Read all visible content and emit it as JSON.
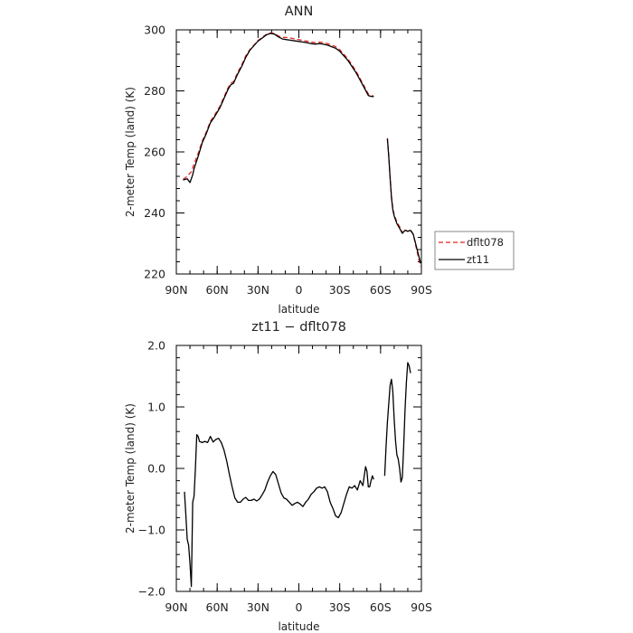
{
  "chart_data": [
    {
      "type": "line",
      "title": "ANN",
      "xlabel": "latitude",
      "ylabel": "2-meter Temp (land) (K)",
      "xlim": [
        90,
        -90
      ],
      "ylim": [
        220,
        300
      ],
      "x_tick_labels": [
        "90N",
        "60N",
        "30N",
        "0",
        "30S",
        "60S",
        "90S"
      ],
      "x_tick_values": [
        90,
        60,
        30,
        0,
        -30,
        -60,
        -90
      ],
      "y_ticks": [
        220,
        240,
        260,
        280,
        300
      ],
      "y_tick_labels": [
        "220",
        "240",
        "260",
        "280",
        "300"
      ],
      "grid": false,
      "legend_position": "right",
      "series": [
        {
          "name": "dflt078",
          "color": "#e0231e",
          "dash": "dashed",
          "segments": [
            [
              [
                85,
                251.0
              ],
              [
                82,
                252.0
              ],
              [
                79,
                253.5
              ],
              [
                77,
                256.0
              ],
              [
                74,
                259.5
              ],
              [
                71,
                263.5
              ],
              [
                68,
                266.5
              ],
              [
                65,
                270.0
              ],
              [
                62,
                272.0
              ],
              [
                58,
                275.0
              ],
              [
                55,
                278.0
              ],
              [
                52,
                281.0
              ],
              [
                50,
                282.5
              ],
              [
                48,
                283.0
              ],
              [
                45,
                286.0
              ],
              [
                42,
                288.5
              ],
              [
                39,
                291.5
              ],
              [
                36,
                293.5
              ],
              [
                33,
                295.0
              ],
              [
                30,
                296.5
              ],
              [
                27,
                297.5
              ],
              [
                24,
                298.5
              ],
              [
                21,
                299.0
              ],
              [
                18,
                298.8
              ],
              [
                15,
                298.0
              ],
              [
                12,
                297.5
              ],
              [
                9,
                297.5
              ],
              [
                6,
                297.3
              ],
              [
                3,
                297.0
              ],
              [
                0,
                296.8
              ],
              [
                -3,
                296.5
              ],
              [
                -6,
                296.3
              ],
              [
                -9,
                296.0
              ],
              [
                -12,
                295.8
              ],
              [
                -15,
                296.0
              ],
              [
                -18,
                295.8
              ],
              [
                -21,
                295.5
              ],
              [
                -24,
                295.0
              ],
              [
                -27,
                294.5
              ],
              [
                -30,
                293.5
              ],
              [
                -33,
                292.0
              ],
              [
                -36,
                290.5
              ],
              [
                -39,
                288.5
              ],
              [
                -42,
                286.5
              ],
              [
                -45,
                284.0
              ],
              [
                -48,
                281.5
              ],
              [
                -51,
                279.0
              ],
              [
                -53,
                278.5
              ],
              [
                -55,
                278.3
              ]
            ],
            [
              [
                -65,
                264.5
              ],
              [
                -66,
                259.0
              ],
              [
                -67,
                252.0
              ],
              [
                -68,
                245.5
              ],
              [
                -69,
                241.5
              ],
              [
                -70,
                239.5
              ],
              [
                -72,
                237.0
              ],
              [
                -74,
                235.5
              ],
              [
                -76,
                233.5
              ],
              [
                -78,
                234.5
              ],
              [
                -80,
                234.0
              ],
              [
                -82,
                234.5
              ],
              [
                -84,
                233.0
              ],
              [
                -86,
                229.0
              ],
              [
                -88,
                225.0
              ],
              [
                -89.5,
                222.5
              ]
            ]
          ]
        },
        {
          "name": "zt11",
          "color": "#000000",
          "dash": "solid",
          "segments": [
            [
              [
                85,
                250.8
              ],
              [
                82,
                251.2
              ],
              [
                80,
                250.0
              ],
              [
                78,
                252.5
              ],
              [
                77,
                254.5
              ],
              [
                74,
                258.5
              ],
              [
                71,
                263.0
              ],
              [
                68,
                266.0
              ],
              [
                65,
                269.5
              ],
              [
                62,
                271.5
              ],
              [
                58,
                274.5
              ],
              [
                55,
                277.5
              ],
              [
                52,
                280.5
              ],
              [
                50,
                282.0
              ],
              [
                48,
                282.5
              ],
              [
                45,
                285.5
              ],
              [
                42,
                288.0
              ],
              [
                39,
                291.0
              ],
              [
                36,
                293.3
              ],
              [
                33,
                294.8
              ],
              [
                30,
                296.3
              ],
              [
                27,
                297.3
              ],
              [
                24,
                298.3
              ],
              [
                21,
                298.8
              ],
              [
                18,
                298.6
              ],
              [
                15,
                297.7
              ],
              [
                12,
                297.0
              ],
              [
                9,
                296.8
              ],
              [
                6,
                296.6
              ],
              [
                3,
                296.4
              ],
              [
                0,
                296.2
              ],
              [
                -3,
                296.0
              ],
              [
                -6,
                295.8
              ],
              [
                -9,
                295.5
              ],
              [
                -12,
                295.3
              ],
              [
                -15,
                295.5
              ],
              [
                -18,
                295.3
              ],
              [
                -21,
                295.0
              ],
              [
                -24,
                294.5
              ],
              [
                -27,
                294.0
              ],
              [
                -30,
                293.0
              ],
              [
                -33,
                291.5
              ],
              [
                -36,
                290.0
              ],
              [
                -39,
                288.0
              ],
              [
                -42,
                286.0
              ],
              [
                -45,
                283.5
              ],
              [
                -48,
                281.0
              ],
              [
                -51,
                278.5
              ],
              [
                -53,
                278.2
              ],
              [
                -55,
                278.1
              ]
            ],
            [
              [
                -65,
                264.3
              ],
              [
                -66,
                258.5
              ],
              [
                -67,
                251.5
              ],
              [
                -68,
                245.0
              ],
              [
                -69,
                241.0
              ],
              [
                -70,
                239.0
              ],
              [
                -72,
                236.5
              ],
              [
                -74,
                235.0
              ],
              [
                -76,
                233.3
              ],
              [
                -78,
                234.3
              ],
              [
                -80,
                234.0
              ],
              [
                -82,
                234.3
              ],
              [
                -84,
                233.0
              ],
              [
                -86,
                229.5
              ],
              [
                -88,
                226.0
              ],
              [
                -89.5,
                223.5
              ]
            ]
          ]
        }
      ]
    },
    {
      "type": "line",
      "title": "zt11 − dflt078",
      "xlabel": "latitude",
      "ylabel": "2-meter Temp (land) (K)",
      "xlim": [
        90,
        -90
      ],
      "ylim": [
        -2,
        2
      ],
      "x_tick_labels": [
        "90N",
        "60N",
        "30N",
        "0",
        "30S",
        "60S",
        "90S"
      ],
      "x_tick_values": [
        90,
        60,
        30,
        0,
        -30,
        -60,
        -90
      ],
      "y_ticks": [
        -2,
        -1,
        0,
        1,
        2
      ],
      "y_tick_labels": [
        "−2.0",
        "−1.0",
        "0.0",
        "1.0",
        "2.0"
      ],
      "grid": false,
      "series": [
        {
          "name": "zt11",
          "color": "#000000",
          "dash": "solid",
          "segments": [
            [
              [
                84,
                -0.38
              ],
              [
                83,
                -0.75
              ],
              [
                82,
                -1.15
              ],
              [
                81,
                -1.25
              ],
              [
                80,
                -1.55
              ],
              [
                79,
                -1.92
              ],
              [
                78,
                -0.55
              ],
              [
                77,
                -0.45
              ],
              [
                76,
                0.0
              ],
              [
                75,
                0.55
              ],
              [
                74,
                0.52
              ],
              [
                73,
                0.44
              ],
              [
                71,
                0.42
              ],
              [
                69,
                0.44
              ],
              [
                67,
                0.42
              ],
              [
                65,
                0.52
              ],
              [
                63,
                0.43
              ],
              [
                61,
                0.47
              ],
              [
                59,
                0.49
              ],
              [
                57,
                0.42
              ],
              [
                55,
                0.3
              ],
              [
                53,
                0.12
              ],
              [
                51,
                -0.1
              ],
              [
                49,
                -0.3
              ],
              [
                47,
                -0.48
              ],
              [
                45,
                -0.55
              ],
              [
                43,
                -0.55
              ],
              [
                41,
                -0.5
              ],
              [
                39,
                -0.47
              ],
              [
                37,
                -0.52
              ],
              [
                35,
                -0.52
              ],
              [
                33,
                -0.5
              ],
              [
                31,
                -0.53
              ],
              [
                29,
                -0.5
              ],
              [
                27,
                -0.43
              ],
              [
                25,
                -0.35
              ],
              [
                23,
                -0.22
              ],
              [
                21,
                -0.12
              ],
              [
                19,
                -0.05
              ],
              [
                17,
                -0.1
              ],
              [
                15,
                -0.25
              ],
              [
                13,
                -0.4
              ],
              [
                11,
                -0.48
              ],
              [
                9,
                -0.5
              ],
              [
                7,
                -0.55
              ],
              [
                5,
                -0.6
              ],
              [
                3,
                -0.57
              ],
              [
                1,
                -0.55
              ],
              [
                -1,
                -0.58
              ],
              [
                -3,
                -0.62
              ],
              [
                -5,
                -0.55
              ],
              [
                -7,
                -0.5
              ],
              [
                -9,
                -0.42
              ],
              [
                -11,
                -0.38
              ],
              [
                -13,
                -0.32
              ],
              [
                -15,
                -0.3
              ],
              [
                -17,
                -0.32
              ],
              [
                -19,
                -0.3
              ],
              [
                -21,
                -0.38
              ],
              [
                -23,
                -0.55
              ],
              [
                -25,
                -0.65
              ],
              [
                -27,
                -0.77
              ],
              [
                -29,
                -0.8
              ],
              [
                -31,
                -0.72
              ],
              [
                -33,
                -0.57
              ],
              [
                -35,
                -0.42
              ],
              [
                -37,
                -0.3
              ],
              [
                -39,
                -0.32
              ],
              [
                -41,
                -0.28
              ],
              [
                -43,
                -0.35
              ],
              [
                -45,
                -0.2
              ],
              [
                -47,
                -0.28
              ],
              [
                -48,
                -0.12
              ],
              [
                -49,
                0.03
              ],
              [
                -50,
                -0.05
              ],
              [
                -51,
                -0.3
              ],
              [
                -52,
                -0.3
              ],
              [
                -53,
                -0.2
              ],
              [
                -54,
                -0.12
              ],
              [
                -55,
                -0.18
              ]
            ],
            [
              [
                -63,
                -0.12
              ],
              [
                -64,
                0.35
              ],
              [
                -65,
                0.75
              ],
              [
                -66,
                1.05
              ],
              [
                -67,
                1.35
              ],
              [
                -68,
                1.45
              ],
              [
                -69,
                1.25
              ],
              [
                -70,
                0.8
              ],
              [
                -71,
                0.45
              ],
              [
                -72,
                0.22
              ],
              [
                -73,
                0.15
              ],
              [
                -74,
                0.0
              ],
              [
                -75,
                -0.22
              ],
              [
                -76,
                -0.15
              ],
              [
                -77,
                0.35
              ],
              [
                -78,
                0.95
              ],
              [
                -79,
                1.4
              ],
              [
                -80,
                1.72
              ],
              [
                -81,
                1.67
              ],
              [
                -82,
                1.55
              ]
            ]
          ]
        }
      ]
    }
  ]
}
